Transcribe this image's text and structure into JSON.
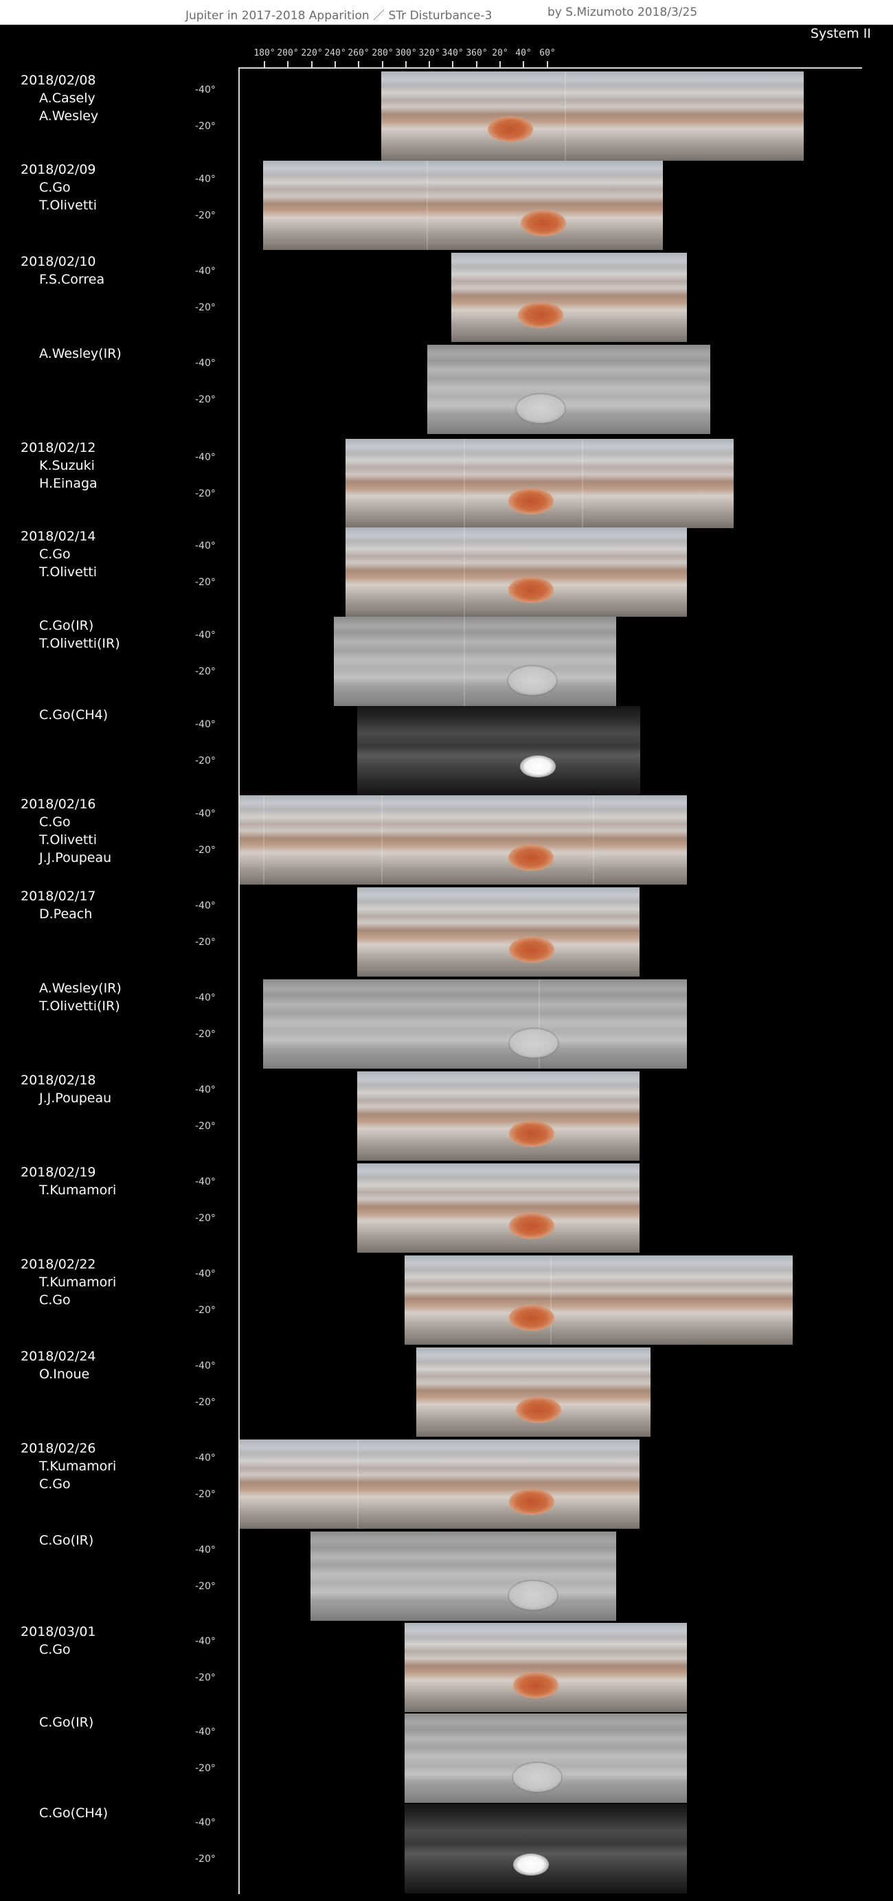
{
  "header": {
    "title": "Jupiter in 2017-2018 Apparition ／ STr Disturbance-3",
    "credit": "by S.Mizumoto  2018/3/25"
  },
  "system_label": "System II",
  "longitude_labels": [
    "180°",
    "200°",
    "220°",
    "240°",
    "260°",
    "280°",
    "300°",
    "320°",
    "340°",
    "360°",
    "20°",
    "40°",
    "60°"
  ],
  "latitude_labels": {
    "north": "-40°",
    "south": "-20°"
  },
  "rows": [
    {
      "date": "2018/02/08",
      "observers": [
        "A.Casely",
        "A.Wesley"
      ],
      "kind": "color"
    },
    {
      "date": "2018/02/09",
      "observers": [
        "C.Go",
        "T.Olivetti"
      ],
      "kind": "color"
    },
    {
      "date": "2018/02/10",
      "observers": [
        "F.S.Correa"
      ],
      "kind": "color"
    },
    {
      "date": "",
      "observers": [
        "A.Wesley(IR)"
      ],
      "kind": "ir"
    },
    {
      "date": "2018/02/12",
      "observers": [
        "K.Suzuki",
        "H.Einaga"
      ],
      "kind": "color"
    },
    {
      "date": "2018/02/14",
      "observers": [
        "C.Go",
        "T.Olivetti"
      ],
      "kind": "color"
    },
    {
      "date": "",
      "observers": [
        "C.Go(IR)",
        "T.Olivetti(IR)"
      ],
      "kind": "ir"
    },
    {
      "date": "",
      "observers": [
        "C.Go(CH4)"
      ],
      "kind": "ch4"
    },
    {
      "date": "2018/02/16",
      "observers": [
        "C.Go",
        "T.Olivetti",
        "J.J.Poupeau"
      ],
      "kind": "color"
    },
    {
      "date": "2018/02/17",
      "observers": [
        "D.Peach"
      ],
      "kind": "color"
    },
    {
      "date": "",
      "observers": [
        "A.Wesley(IR)",
        "T.Olivetti(IR)"
      ],
      "kind": "ir"
    },
    {
      "date": "2018/02/18",
      "observers": [
        "J.J.Poupeau"
      ],
      "kind": "color"
    },
    {
      "date": "2018/02/19",
      "observers": [
        "T.Kumamori"
      ],
      "kind": "color"
    },
    {
      "date": "2018/02/22",
      "observers": [
        "T.Kumamori",
        "C.Go"
      ],
      "kind": "color"
    },
    {
      "date": "2018/02/24",
      "observers": [
        "O.Inoue"
      ],
      "kind": "color"
    },
    {
      "date": "2018/02/26",
      "observers": [
        "T.Kumamori",
        "C.Go"
      ],
      "kind": "color"
    },
    {
      "date": "",
      "observers": [
        "C.Go(IR)"
      ],
      "kind": "ir"
    },
    {
      "date": "2018/03/01",
      "observers": [
        "C.Go"
      ],
      "kind": "color"
    },
    {
      "date": "",
      "observers": [
        "C.Go(IR)"
      ],
      "kind": "ir"
    },
    {
      "date": "",
      "observers": [
        "C.Go(CH4)"
      ],
      "kind": "ch4"
    }
  ]
}
